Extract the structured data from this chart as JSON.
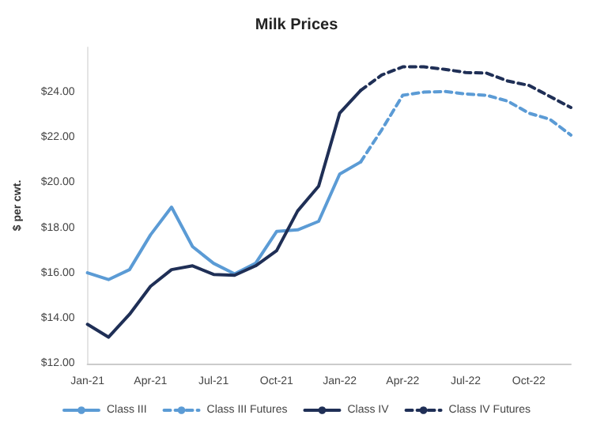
{
  "chart_data": {
    "type": "line",
    "title": "Milk Prices",
    "ylabel": "$ per cwt.",
    "categories": [
      "Jan-21",
      null,
      null,
      "Apr-21",
      null,
      null,
      "Jul-21",
      null,
      null,
      "Oct-21",
      null,
      null,
      "Jan-22",
      null,
      null,
      "Apr-22",
      null,
      null,
      "Jul-22",
      null,
      null,
      "Oct-22",
      null,
      null
    ],
    "series": [
      {
        "name": "Class III",
        "color": "#5b9bd5",
        "line_style": "solid",
        "values": [
          16.02,
          15.72,
          16.16,
          17.7,
          18.93,
          17.18,
          16.44,
          15.97,
          16.44,
          17.85,
          17.92,
          18.3,
          20.39,
          20.93,
          null,
          null,
          null,
          null,
          null,
          null,
          null,
          null,
          null,
          null
        ]
      },
      {
        "name": "Class III Futures",
        "color": "#5b9bd5",
        "line_style": "dashed",
        "values": [
          null,
          null,
          null,
          null,
          null,
          null,
          null,
          null,
          null,
          null,
          null,
          null,
          null,
          20.93,
          22.35,
          23.88,
          24.02,
          24.05,
          23.94,
          23.88,
          23.62,
          23.09,
          22.82,
          22.12
        ]
      },
      {
        "name": "Class IV",
        "color": "#1f2f56",
        "line_style": "solid",
        "values": [
          13.74,
          13.17,
          14.18,
          15.42,
          16.16,
          16.33,
          15.95,
          15.91,
          16.33,
          17.0,
          18.76,
          19.86,
          23.09,
          24.1,
          null,
          null,
          null,
          null,
          null,
          null,
          null,
          null,
          null,
          null
        ]
      },
      {
        "name": "Class IV Futures",
        "color": "#1f2f56",
        "line_style": "dashed",
        "values": [
          null,
          null,
          null,
          null,
          null,
          null,
          null,
          null,
          null,
          null,
          null,
          null,
          null,
          24.1,
          24.78,
          25.14,
          25.14,
          25.03,
          24.89,
          24.86,
          24.51,
          24.32,
          23.83,
          23.34
        ]
      }
    ],
    "ylim": [
      12,
      26
    ],
    "yticks": [
      {
        "value": 12,
        "label": "$12.00"
      },
      {
        "value": 14,
        "label": "$14.00"
      },
      {
        "value": 16,
        "label": "$16.00"
      },
      {
        "value": 18,
        "label": "$18.00"
      },
      {
        "value": 20,
        "label": "$20.00"
      },
      {
        "value": 22,
        "label": "$22.00"
      },
      {
        "value": 24,
        "label": "$24.00"
      }
    ],
    "grid": false,
    "legend": "bottom",
    "marker": "none"
  }
}
